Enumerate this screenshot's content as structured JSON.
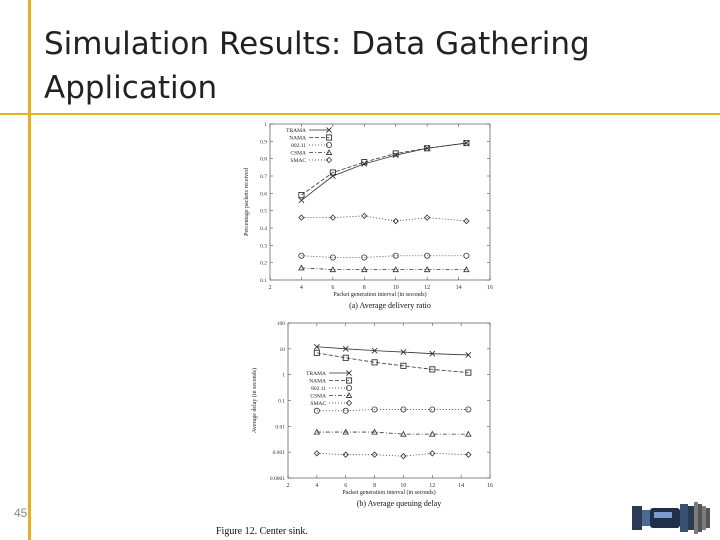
{
  "slide": {
    "title_line1": "Simulation Results: Data Gathering",
    "title_line2": "Application",
    "number": "45",
    "figure_caption": "Figure 12. Center sink."
  },
  "colors": {
    "accent": "#e8b020",
    "title_text": "#222222",
    "plot_line": "#333333"
  },
  "chart_data": [
    {
      "type": "line",
      "title": "(a) Average delivery ratio",
      "xlabel": "Packet generation interval (in seconds)",
      "ylabel": "Percentage packets received",
      "xlim": [
        2,
        16
      ],
      "ylim": [
        0.1,
        1
      ],
      "x_ticks": [
        "2",
        "4",
        "6",
        "8",
        "10",
        "12",
        "14",
        "16"
      ],
      "y_ticks": [
        "0.1",
        "0.2",
        "0.3",
        "0.4",
        "0.5",
        "0.6",
        "0.7",
        "0.8",
        "0.9",
        "1"
      ],
      "legend_position": "top-left",
      "series": [
        {
          "name": "TRAMA",
          "marker": "x",
          "dash": "solid",
          "x": [
            4,
            6,
            8,
            10,
            12,
            14.5
          ],
          "y": [
            0.56,
            0.7,
            0.77,
            0.82,
            0.86,
            0.89
          ]
        },
        {
          "name": "NAMA",
          "marker": "square",
          "dash": "dash",
          "x": [
            4,
            6,
            8,
            10,
            12,
            14.5
          ],
          "y": [
            0.59,
            0.72,
            0.78,
            0.83,
            0.86,
            0.89
          ]
        },
        {
          "name": "802.11",
          "marker": "circle",
          "dash": "dot",
          "x": [
            4,
            6,
            8,
            10,
            12,
            14.5
          ],
          "y": [
            0.24,
            0.23,
            0.23,
            0.24,
            0.24,
            0.24
          ]
        },
        {
          "name": "CSMA",
          "marker": "triangle",
          "dash": "dashdot",
          "x": [
            4,
            6,
            8,
            10,
            12,
            14.5
          ],
          "y": [
            0.17,
            0.16,
            0.16,
            0.16,
            0.16,
            0.16
          ]
        },
        {
          "name": "SMAC",
          "marker": "diamond",
          "dash": "dot",
          "x": [
            4,
            6,
            8,
            10,
            12,
            14.5
          ],
          "y": [
            0.46,
            0.46,
            0.47,
            0.44,
            0.46,
            0.44
          ]
        }
      ]
    },
    {
      "type": "line",
      "title": "(b) Average queuing delay",
      "xlabel": "Packet generation interval (in seconds)",
      "ylabel": "Average delay (in seconds)",
      "xlim": [
        2,
        16
      ],
      "ylim": [
        0.0001,
        100
      ],
      "yscale": "log",
      "x_ticks": [
        "2",
        "4",
        "6",
        "8",
        "10",
        "12",
        "14",
        "16"
      ],
      "y_ticks": [
        "0.0001",
        "0.001",
        "0.01",
        "0.1",
        "1",
        "10",
        "100"
      ],
      "legend_position": "top-left",
      "series": [
        {
          "name": "TRAMA",
          "marker": "x",
          "dash": "solid",
          "x": [
            4,
            6,
            8,
            10,
            12,
            14.5
          ],
          "y": [
            12,
            10,
            8.5,
            7.5,
            6.5,
            5.8
          ]
        },
        {
          "name": "NAMA",
          "marker": "square",
          "dash": "dash",
          "x": [
            4,
            6,
            8,
            10,
            12,
            14.5
          ],
          "y": [
            7,
            4.5,
            3,
            2.2,
            1.6,
            1.2
          ]
        },
        {
          "name": "802.11",
          "marker": "circle",
          "dash": "dot",
          "x": [
            4,
            6,
            8,
            10,
            12,
            14.5
          ],
          "y": [
            0.04,
            0.04,
            0.045,
            0.045,
            0.045,
            0.045
          ]
        },
        {
          "name": "CSMA",
          "marker": "triangle",
          "dash": "dashdot",
          "x": [
            4,
            6,
            8,
            10,
            12,
            14.5
          ],
          "y": [
            0.006,
            0.006,
            0.006,
            0.005,
            0.005,
            0.005
          ]
        },
        {
          "name": "SMAC",
          "marker": "diamond",
          "dash": "dot",
          "x": [
            4,
            6,
            8,
            10,
            12,
            14.5
          ],
          "y": [
            0.0009,
            0.0008,
            0.0008,
            0.0007,
            0.0009,
            0.0008
          ]
        }
      ]
    }
  ]
}
